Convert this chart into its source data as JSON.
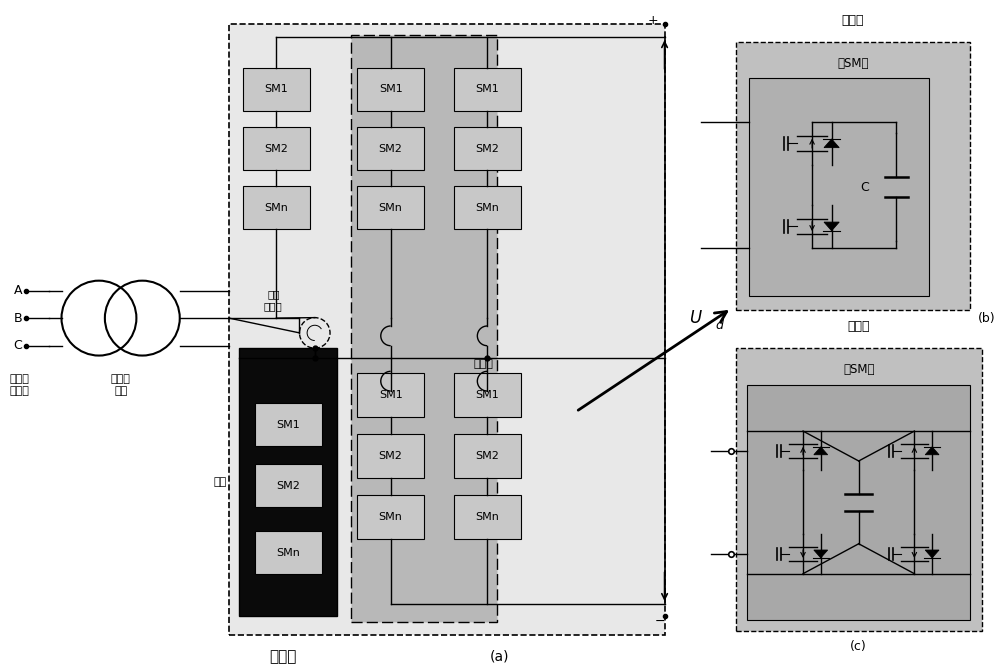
{
  "bg_color": "#ffffff",
  "main_box_bg": "#e8e8e8",
  "phase_unit_bg": "#b8b8b8",
  "dark_box_bg": "#0a0a0a",
  "sm_fill": "#c8c8c8",
  "sub_bg": "#c0c0c0",
  "labels": {
    "ac_port": "交流网\n侧端口",
    "ac_transformer": "交流变\n压器",
    "bridge_reactor": "桥臂\n电抗器",
    "phase_unit": "相单元",
    "bridge_arm": "桥臂",
    "converter_valve": "换流阀",
    "label_a": "(a)",
    "label_b": "(b)",
    "label_c": "(c)",
    "Ud": "Ud",
    "sub_module_title": "子模块",
    "sub_module_sm": "（SM）",
    "C_label": "C"
  },
  "ABC": [
    "A",
    "B",
    "C"
  ],
  "sm_labels": [
    "SM1",
    "SM2",
    "SMn"
  ]
}
